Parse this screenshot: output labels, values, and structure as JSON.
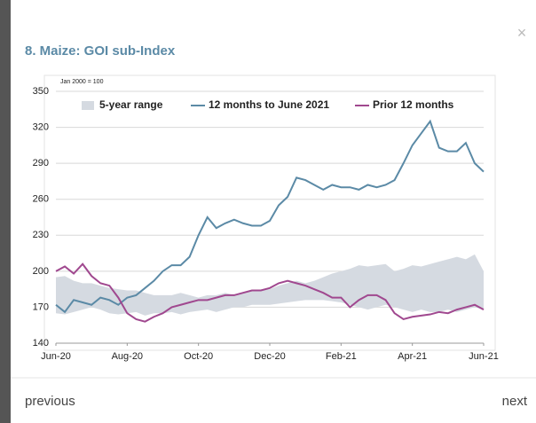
{
  "modal": {
    "title": "8. Maize: GOI sub-Index",
    "close": "×",
    "previous": "previous",
    "next": "next"
  },
  "chart_data": {
    "type": "line",
    "subtitle": "Jan 2000 = 100",
    "categories": [
      "Jun-20",
      null,
      null,
      null,
      null,
      null,
      null,
      null,
      "Aug-20",
      null,
      null,
      null,
      null,
      null,
      null,
      null,
      "Oct-20",
      null,
      null,
      null,
      null,
      null,
      null,
      null,
      "Dec-20",
      null,
      null,
      null,
      null,
      null,
      null,
      null,
      "Feb-21",
      null,
      null,
      null,
      null,
      null,
      null,
      null,
      "Apr-21",
      null,
      null,
      null,
      null,
      null,
      null,
      null,
      "Jun-21"
    ],
    "ylim": [
      140,
      350
    ],
    "yticks": [
      140,
      170,
      200,
      230,
      260,
      290,
      320,
      350
    ],
    "grid": true,
    "legend": "top",
    "series": [
      {
        "name": "5-year range",
        "color": "#d5dae1",
        "low": [
          165,
          164,
          166,
          168,
          170,
          168,
          165,
          164,
          165,
          166,
          163,
          165,
          165,
          166,
          164,
          166,
          167,
          168,
          166,
          168,
          170,
          170,
          172,
          172,
          172,
          173,
          174,
          175,
          176,
          176,
          176,
          175,
          174,
          172,
          170,
          168,
          170,
          172,
          170,
          168,
          166,
          168,
          166,
          166,
          168,
          166,
          168,
          170,
          168
        ],
        "high": [
          195,
          196,
          192,
          190,
          190,
          188,
          186,
          185,
          184,
          184,
          182,
          180,
          180,
          180,
          182,
          180,
          178,
          180,
          180,
          182,
          180,
          182,
          184,
          184,
          185,
          188,
          190,
          192,
          190,
          192,
          195,
          198,
          200,
          202,
          205,
          204,
          205,
          206,
          200,
          202,
          205,
          204,
          206,
          208,
          210,
          212,
          210,
          214,
          200
        ]
      },
      {
        "name": "12 months to June 2021",
        "color": "#5b8aa6",
        "values": [
          172,
          166,
          176,
          174,
          172,
          178,
          176,
          172,
          178,
          180,
          186,
          192,
          200,
          205,
          205,
          212,
          230,
          245,
          236,
          240,
          243,
          240,
          238,
          238,
          242,
          255,
          262,
          278,
          276,
          272,
          268,
          272,
          270,
          270,
          268,
          272,
          270,
          272,
          276,
          290,
          305,
          315,
          325,
          303,
          300,
          300,
          307,
          290,
          283
        ]
      },
      {
        "name": "Prior 12 months",
        "color": "#a0488f",
        "values": [
          200,
          204,
          198,
          206,
          196,
          190,
          188,
          178,
          165,
          160,
          158,
          162,
          165,
          170,
          172,
          174,
          176,
          176,
          178,
          180,
          180,
          182,
          184,
          184,
          186,
          190,
          192,
          190,
          188,
          185,
          182,
          178,
          178,
          170,
          176,
          180,
          180,
          176,
          165,
          160,
          162,
          163,
          164,
          166,
          165,
          168,
          170,
          172,
          168
        ]
      }
    ]
  }
}
